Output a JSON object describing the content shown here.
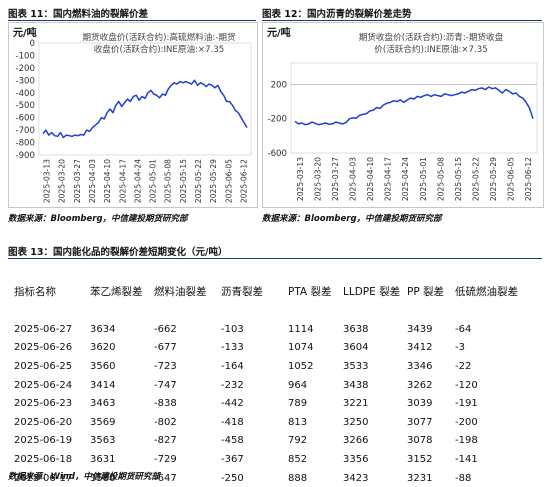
{
  "chart1": {
    "fig_title": "图表 11：国内燃料油的裂解价差",
    "unit": "元/吨",
    "legend": "期货收盘价(活跃合约):高硫燃料油:-期货收盘价(活跃合约):INE原油:×7.35",
    "source": "数据来源：Bloomberg，中信建投期货研究部",
    "color": "#1f3fd0"
  },
  "chart2": {
    "fig_title": "图表 12：国内沥青的裂解价差走势",
    "unit": "元/吨",
    "legend": "期货收盘价(活跃合约):沥青:-期货收盘价(活跃合约):INE原油:×7.35",
    "source": "数据来源：Bloomberg，中信建投期货研究部",
    "color": "#1f3fd0"
  },
  "table_section": {
    "fig_title": "图表 13：国内能化品的裂解价差短期变化（元/吨）",
    "source": "数据来源：Wind，中信建投期货研究部",
    "headers": [
      "指标名称",
      "苯乙烯裂差",
      "燃料油裂差",
      "沥青裂差",
      "PTA 裂差",
      "LLDPE 裂差",
      "PP 裂差",
      "低硫燃油裂差"
    ],
    "rows": [
      [
        "2025-06-27",
        "3634",
        "-662",
        "-103",
        "1114",
        "3638",
        "3439",
        "-64"
      ],
      [
        "2025-06-26",
        "3620",
        "-677",
        "-133",
        "1074",
        "3604",
        "3412",
        "-3"
      ],
      [
        "2025-06-25",
        "3560",
        "-723",
        "-164",
        "1052",
        "3533",
        "3346",
        "-22"
      ],
      [
        "2025-06-24",
        "3414",
        "-747",
        "-232",
        "964",
        "3438",
        "3262",
        "-120"
      ],
      [
        "2025-06-23",
        "3463",
        "-838",
        "-442",
        "789",
        "3221",
        "3039",
        "-191"
      ],
      [
        "2025-06-20",
        "3569",
        "-802",
        "-418",
        "813",
        "3250",
        "3077",
        "-200"
      ],
      [
        "2025-06-19",
        "3563",
        "-827",
        "-458",
        "792",
        "3266",
        "3078",
        "-198"
      ],
      [
        "2025-06-18",
        "3631",
        "-729",
        "-367",
        "852",
        "3356",
        "3152",
        "-141"
      ],
      [
        "2025-06-17",
        "3580",
        "-647",
        "-250",
        "888",
        "3423",
        "3231",
        "-88"
      ]
    ]
  },
  "chart_data": [
    {
      "type": "line",
      "ylabel": "元/吨",
      "ylim": [
        -900,
        0
      ],
      "yticks": [
        0,
        -100,
        -200,
        -300,
        -400,
        -500,
        -600,
        -700,
        -800,
        -900
      ],
      "xticks": [
        "2025-03-13",
        "2025-03-20",
        "2025-03-27",
        "2025-04-03",
        "2025-04-10",
        "2025-04-17",
        "2025-04-24",
        "2025-05-01",
        "2025-05-08",
        "2025-05-15",
        "2025-05-22",
        "2025-05-29",
        "2025-06-05",
        "2025-06-12"
      ],
      "grid": false,
      "legend": "top-right",
      "series": [
        {
          "name": "期货收盘价(活跃合约):高硫燃料油:-期货收盘价(活跃合约):INE原油:×7.35",
          "values": [
            -730,
            -700,
            -740,
            -720,
            -745,
            -750,
            -720,
            -760,
            -740,
            -745,
            -750,
            -740,
            -745,
            -735,
            -740,
            -700,
            -710,
            -680,
            -660,
            -640,
            -600,
            -610,
            -560,
            -530,
            -560,
            -500,
            -470,
            -510,
            -480,
            -450,
            -470,
            -430,
            -420,
            -460,
            -430,
            -445,
            -400,
            -380,
            -410,
            -420,
            -440,
            -410,
            -420,
            -370,
            -340,
            -320,
            -330,
            -310,
            -320,
            -310,
            -320,
            -330,
            -300,
            -340,
            -320,
            -330,
            -350,
            -330,
            -340,
            -360,
            -340,
            -390,
            -420,
            -470,
            -470,
            -500,
            -540,
            -560,
            -600,
            -640,
            -680
          ]
        }
      ]
    },
    {
      "type": "line",
      "ylabel": "元/吨",
      "ylim": [
        -600,
        450
      ],
      "yticks": [
        200,
        -200,
        -600
      ],
      "xticks": [
        "2025-03-13",
        "2025-03-20",
        "2025-03-27",
        "2025-04-03",
        "2025-04-10",
        "2025-04-17",
        "2025-04-24",
        "2025-05-01",
        "2025-05-08",
        "2025-05-15",
        "2025-05-22",
        "2025-05-29",
        "2025-06-05",
        "2025-06-12"
      ],
      "grid": false,
      "legend": "top-right",
      "series": [
        {
          "name": "期货收盘价(活跃合约):沥青:-期货收盘价(活跃合约):INE原油:×7.35",
          "values": [
            -230,
            -260,
            -250,
            -270,
            -260,
            -240,
            -255,
            -270,
            -260,
            -250,
            -265,
            -260,
            -240,
            -250,
            -260,
            -245,
            -200,
            -190,
            -195,
            -160,
            -150,
            -140,
            -110,
            -100,
            -70,
            -80,
            -40,
            -20,
            -10,
            10,
            0,
            20,
            -10,
            20,
            40,
            30,
            60,
            50,
            70,
            80,
            60,
            80,
            70,
            60,
            90,
            80,
            70,
            80,
            90,
            110,
            100,
            120,
            140,
            130,
            150,
            160,
            140,
            170,
            150,
            160,
            130,
            100,
            140,
            120,
            90,
            100,
            60,
            40,
            -10,
            -80,
            -200
          ]
        }
      ]
    }
  ]
}
